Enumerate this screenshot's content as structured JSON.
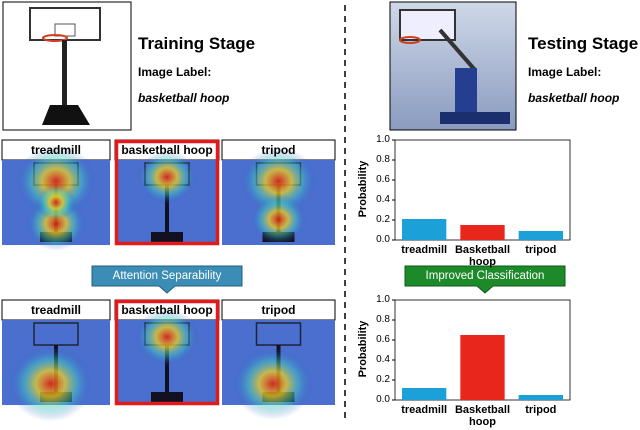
{
  "training": {
    "title": "Training Stage",
    "label_heading": "Image Label:",
    "label": "basketball hoop"
  },
  "testing": {
    "title": "Testing Stage",
    "label_heading": "Image Label:",
    "label": "basketball hoop"
  },
  "panels": {
    "before": [
      "treadmill",
      "basketball hoop",
      "tripod"
    ],
    "after": [
      "treadmill",
      "basketball hoop",
      "tripod"
    ]
  },
  "arrows": {
    "left": "Attention Separability",
    "right": "Improved Classification"
  },
  "chart_data": [
    {
      "type": "bar",
      "ylabel": "Probability",
      "categories": [
        "treadmill",
        "Basketball hoop",
        "tripod"
      ],
      "values": [
        0.21,
        0.15,
        0.09
      ],
      "colors": [
        "#1ba1d8",
        "#e8261b",
        "#1ba1d8"
      ],
      "ylim": [
        0,
        1
      ],
      "yticks": [
        {
          "value": 0,
          "label": "0.0"
        },
        0.2,
        0.4,
        0.6,
        0.8,
        {
          "value": 1,
          "label": "1.0"
        }
      ]
    },
    {
      "type": "bar",
      "ylabel": "Probability",
      "categories": [
        "treadmill",
        "Basketball hoop",
        "tripod"
      ],
      "values": [
        0.12,
        0.65,
        0.05
      ],
      "colors": [
        "#1ba1d8",
        "#e8261b",
        "#1ba1d8"
      ],
      "ylim": [
        0,
        1
      ],
      "yticks": [
        {
          "value": 0,
          "label": "0.0"
        },
        0.2,
        0.4,
        0.6,
        0.8,
        {
          "value": 1,
          "label": "1.0"
        }
      ]
    }
  ]
}
